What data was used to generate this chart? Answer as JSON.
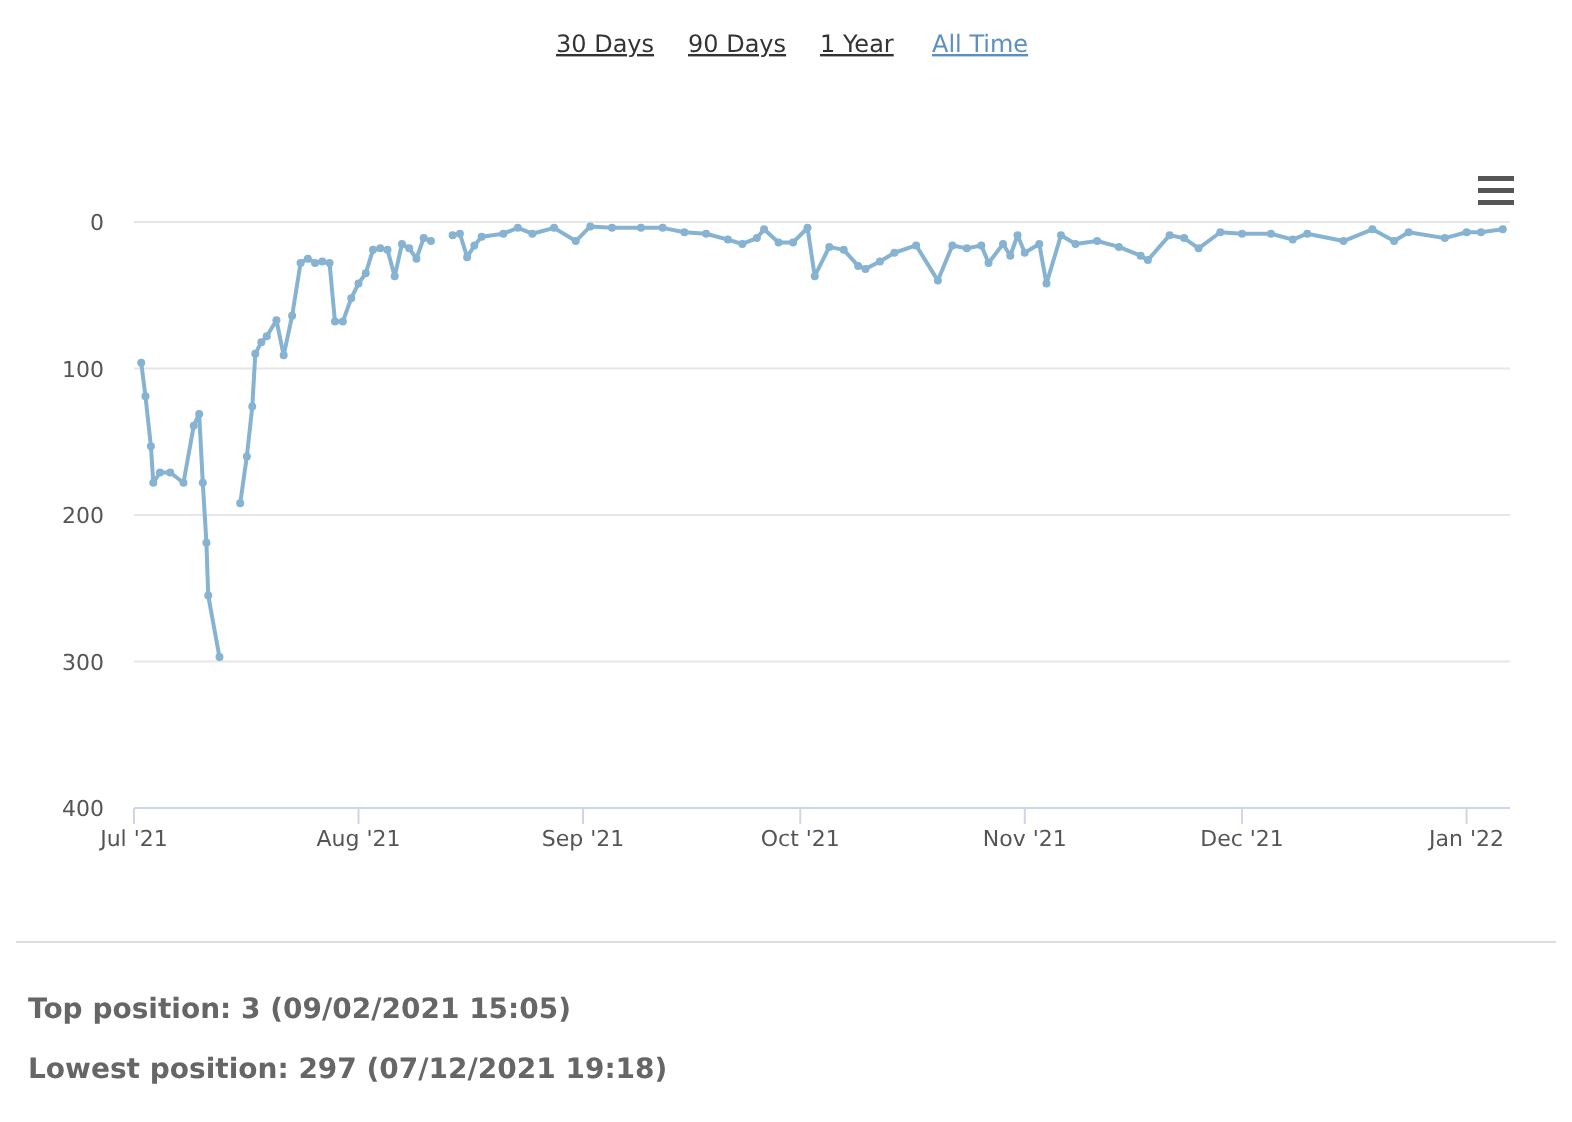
{
  "chart_data": {
    "type": "line",
    "x": [
      "2021-07-02",
      "2021-07-02T14:00",
      "2021-07-03T08:00",
      "2021-07-03T16:00",
      "2021-07-04T14:00",
      "2021-07-06",
      "2021-07-07T20:00",
      "2021-07-09T06:00",
      "2021-07-10",
      "2021-07-10T12:00",
      "2021-07-11",
      "2021-07-11T06:00",
      "2021-07-12T19:18",
      "2021-07-13T12:00",
      "2021-07-15T16:00",
      "2021-07-16T14:00",
      "2021-07-17T08:00",
      "2021-07-17T18:00",
      "2021-07-18T14:00",
      "2021-07-19T08:00",
      "2021-07-20T16:00",
      "2021-07-21T16:00",
      "2021-07-22T20:00",
      "2021-07-24",
      "2021-07-25",
      "2021-07-26",
      "2021-07-27",
      "2021-07-28",
      "2021-07-28T18:00",
      "2021-07-29T20:00",
      "2021-07-31",
      "2021-08-01",
      "2021-08-02",
      "2021-08-03",
      "2021-08-04",
      "2021-08-05",
      "2021-08-06",
      "2021-08-07",
      "2021-08-08",
      "2021-08-09",
      "2021-08-10",
      "2021-08-11",
      "2021-08-12",
      "2021-08-14",
      "2021-08-15",
      "2021-08-16",
      "2021-08-17",
      "2021-08-18",
      "2021-08-21",
      "2021-08-23",
      "2021-08-25",
      "2021-08-28",
      "2021-08-31",
      "2021-09-02",
      "2021-09-05",
      "2021-09-09",
      "2021-09-12",
      "2021-09-15",
      "2021-09-18",
      "2021-09-21",
      "2021-09-23",
      "2021-09-25",
      "2021-09-26",
      "2021-09-28",
      "2021-09-30",
      "2021-10-02",
      "2021-10-03",
      "2021-10-05",
      "2021-10-07",
      "2021-10-09",
      "2021-10-10",
      "2021-10-12",
      "2021-10-14",
      "2021-10-17",
      "2021-10-20",
      "2021-10-22",
      "2021-10-24",
      "2021-10-26",
      "2021-10-27",
      "2021-10-29",
      "2021-10-30",
      "2021-10-31",
      "2021-11-01",
      "2021-11-03",
      "2021-11-04",
      "2021-11-06",
      "2021-11-08",
      "2021-11-11",
      "2021-11-14",
      "2021-11-17",
      "2021-11-18",
      "2021-11-21",
      "2021-11-23",
      "2021-11-25",
      "2021-11-28",
      "2021-12-01",
      "2021-12-05",
      "2021-12-08",
      "2021-12-10",
      "2021-12-15",
      "2021-12-19",
      "2021-12-22",
      "2021-12-24",
      "2021-12-29",
      "2022-01-01",
      "2022-01-03",
      "2022-01-06"
    ],
    "series": [
      {
        "color": "#86b3d1",
        "values": [
          96,
          119,
          153,
          178,
          171,
          171,
          178,
          139,
          131,
          178,
          219,
          255,
          297,
          null,
          192,
          160,
          126,
          90,
          82,
          78,
          67,
          91,
          64,
          28,
          25,
          28,
          27,
          28,
          68,
          68,
          52,
          42,
          35,
          19,
          18,
          19,
          37,
          15,
          18,
          25,
          11,
          13,
          null,
          9,
          8,
          24,
          16,
          10,
          8,
          4,
          8,
          4,
          13,
          3,
          4,
          4,
          4,
          7,
          8,
          12,
          15,
          11,
          5,
          14,
          14,
          4,
          37,
          17,
          19,
          30,
          32,
          27,
          21,
          16,
          40,
          16,
          18,
          16,
          28,
          15,
          23,
          9,
          21,
          15,
          42,
          9,
          15,
          13,
          17,
          23,
          26,
          9,
          11,
          18,
          7,
          8,
          8,
          12,
          8,
          13,
          5,
          13,
          7,
          11,
          7,
          7,
          5
        ]
      }
    ],
    "xlim": [
      "2021-07-01",
      "2022-01-07"
    ],
    "xticks": [
      {
        "value": "2021-07-01",
        "label": "Jul '21"
      },
      {
        "value": "2021-08-01",
        "label": "Aug '21"
      },
      {
        "value": "2021-09-01",
        "label": "Sep '21"
      },
      {
        "value": "2021-10-01",
        "label": "Oct '21"
      },
      {
        "value": "2021-11-01",
        "label": "Nov '21"
      },
      {
        "value": "2021-12-01",
        "label": "Dec '21"
      },
      {
        "value": "2022-01-01",
        "label": "Jan '22"
      }
    ],
    "ylim": [
      400,
      0
    ],
    "yticks": [
      0,
      100,
      200,
      300,
      400
    ],
    "grid": "y",
    "marker": "circle",
    "line_style": "solid",
    "annotations": [
      "30 Days",
      "90 Days",
      "1 Year",
      "All Time",
      "Top position: 3 (09/02/2021 15:05)",
      "Lowest position: 297 (07/12/2021 19:18)"
    ]
  }
}
